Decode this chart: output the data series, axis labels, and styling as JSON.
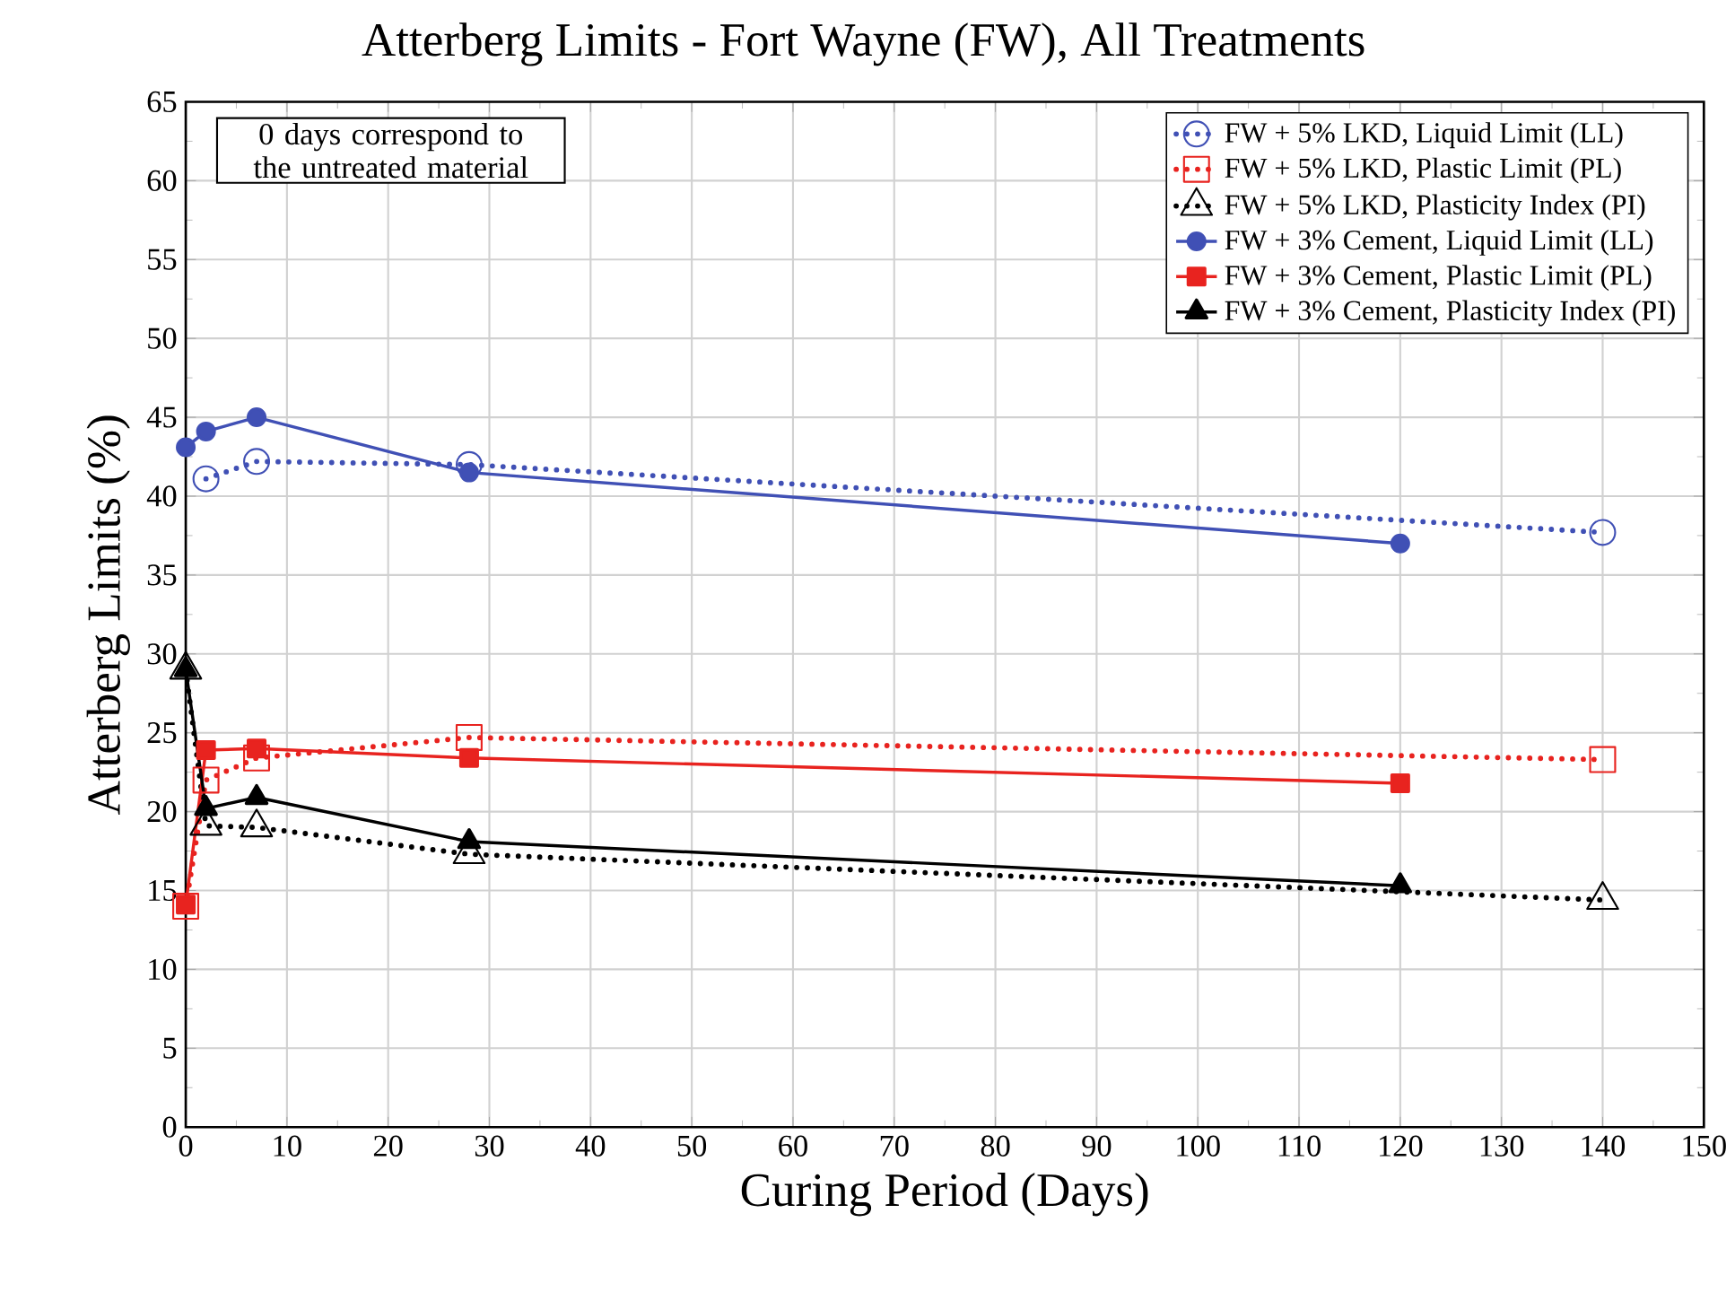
{
  "chart_data": {
    "type": "line",
    "title": "Atterberg Limits - Fort Wayne (FW), All Treatments",
    "xlabel": "Curing Period (Days)",
    "ylabel": "Atterberg Limits (%)",
    "annotations": [
      "0 days correspond to the untreated material"
    ],
    "xlim": [
      0,
      150
    ],
    "xticks": [
      0,
      10,
      20,
      30,
      40,
      50,
      60,
      70,
      80,
      90,
      100,
      110,
      120,
      130,
      140,
      150
    ],
    "ylim": [
      0,
      65
    ],
    "yticks": [
      0,
      5,
      10,
      15,
      20,
      25,
      30,
      35,
      40,
      45,
      50,
      55,
      60,
      65
    ],
    "grid": true,
    "legend": "top right",
    "series": [
      {
        "name": "FW + 5% LKD, Liquid Limit (LL)",
        "color": "#4050b5",
        "marker": "circle",
        "line_style": "dotted",
        "x": [
          2,
          7,
          28,
          140
        ],
        "values": [
          41.1,
          42.2,
          42.0,
          37.7
        ]
      },
      {
        "name": "FW + 5% LKD, Plastic Limit (PL)",
        "color": "#e8231f",
        "marker": "square",
        "line_style": "dotted",
        "x": [
          0,
          2,
          7,
          28,
          140
        ],
        "values": [
          14.0,
          22.0,
          23.4,
          24.7,
          23.3
        ]
      },
      {
        "name": "FW + 5% LKD, Plasticity Index (PI)",
        "color": "#000000",
        "marker": "triangle",
        "line_style": "dotted",
        "x": [
          0,
          2,
          7,
          28,
          140
        ],
        "values": [
          29.0,
          19.1,
          19.0,
          17.3,
          14.4
        ]
      },
      {
        "name": "FW + 3% Cement, Liquid Limit (LL)",
        "color": "#4050b5",
        "marker": "circle",
        "line_style": "solid",
        "x": [
          0,
          2,
          7,
          28,
          120
        ],
        "values": [
          43.1,
          44.1,
          45.0,
          41.5,
          37.0
        ]
      },
      {
        "name": "FW + 3% Cement, Plastic Limit (PL)",
        "color": "#e8231f",
        "marker": "square",
        "line_style": "solid",
        "x": [
          0,
          2,
          7,
          28,
          120
        ],
        "values": [
          14.1,
          23.9,
          24.0,
          23.4,
          21.8
        ]
      },
      {
        "name": "FW + 3% Cement, Plasticity Index (PI)",
        "color": "#000000",
        "marker": "triangle",
        "line_style": "solid",
        "x": [
          0,
          2,
          7,
          28,
          120
        ],
        "values": [
          29.0,
          20.2,
          20.9,
          18.1,
          15.3
        ]
      }
    ]
  }
}
